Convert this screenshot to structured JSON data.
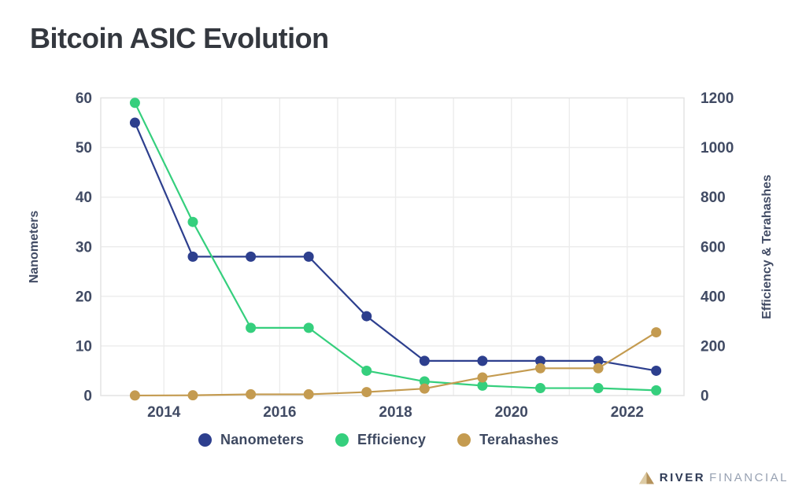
{
  "title": "Bitcoin ASIC Evolution",
  "chart_data": {
    "type": "line",
    "title": "Bitcoin ASIC Evolution",
    "x": [
      2013.5,
      2014.5,
      2015.5,
      2016.5,
      2017.5,
      2018.5,
      2019.5,
      2020.5,
      2021.5,
      2022.5
    ],
    "x_range": [
      2012.91,
      2022.98
    ],
    "x_gridline_years": [
      2014,
      2015,
      2016,
      2017,
      2018,
      2019,
      2020,
      2021,
      2022
    ],
    "x_tick_values": [
      2014,
      2016,
      2018,
      2020,
      2022
    ],
    "x_tick_labels": [
      "2014",
      "2016",
      "2018",
      "2020",
      "2022"
    ],
    "left_axis": {
      "label": "Nanometers",
      "min": 0,
      "max": 60,
      "ticks": [
        0,
        10,
        20,
        30,
        40,
        50,
        60
      ]
    },
    "right_axis": {
      "label": "Efficiency & Terahashes",
      "min": 0,
      "max": 1200,
      "ticks": [
        0,
        200,
        400,
        600,
        800,
        1000,
        1200
      ]
    },
    "series": [
      {
        "name": "Nanometers",
        "axis": "left",
        "color": "#2d3f8e",
        "values": [
          55,
          28,
          28,
          28,
          16,
          7,
          7,
          7,
          7,
          5
        ]
      },
      {
        "name": "Efficiency",
        "axis": "right",
        "color": "#35cf7d",
        "values": [
          1180,
          700,
          273,
          273,
          100,
          57,
          40,
          30,
          30,
          21
        ]
      },
      {
        "name": "Terahashes",
        "axis": "right",
        "color": "#c49b50",
        "values": [
          0.2,
          1,
          5,
          5,
          14,
          28,
          73,
          110,
          110,
          255
        ]
      }
    ],
    "grid": true,
    "legend_position": "bottom"
  },
  "legend": {
    "items": [
      {
        "label": "Nanometers",
        "color": "#2d3f8e"
      },
      {
        "label": "Efficiency",
        "color": "#35cf7d"
      },
      {
        "label": "Terahashes",
        "color": "#c49b50"
      }
    ]
  },
  "logo": {
    "brand": "RIVER",
    "suffix": "FINANCIAL"
  },
  "colors": {
    "navy": "#2d3f8e",
    "green": "#35cf7d",
    "gold": "#c49b50",
    "background": "#ffffff",
    "grid": "#ececec",
    "border": "#e3e3e3",
    "axis_text": "#414b64",
    "title_text": "#34383f"
  }
}
